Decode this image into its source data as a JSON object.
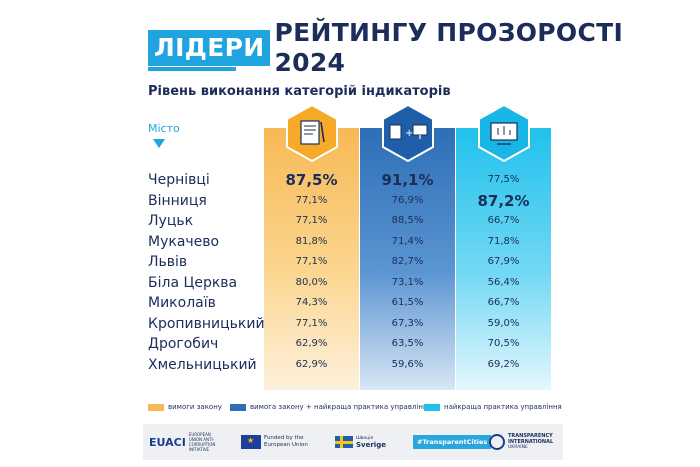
{
  "header": {
    "title_highlight": "ЛІДЕРИ",
    "title_rest": "РЕЙТИНГУ ПРОЗОРОСТІ 2024",
    "subtitle": "Рівень виконання категорій індикаторів"
  },
  "table": {
    "city_header": "Місто",
    "column_icons": [
      "law-document-icon",
      "law-plus-practice-icon",
      "management-practice-icon"
    ],
    "column_colors": [
      "#f7b955",
      "#2d6fb6",
      "#21c1ec"
    ],
    "rows": [
      {
        "city": "Чернівці",
        "law": "87,5%",
        "law_practice": "91,1%",
        "practice": "77,5%"
      },
      {
        "city": "Вінниця",
        "law": "77,1%",
        "law_practice": "76,9%",
        "practice": "87,2%"
      },
      {
        "city": "Луцьк",
        "law": "77,1%",
        "law_practice": "88,5%",
        "practice": "66,7%"
      },
      {
        "city": "Мукачево",
        "law": "81,8%",
        "law_practice": "71,4%",
        "practice": "71,8%"
      },
      {
        "city": "Львів",
        "law": "77,1%",
        "law_practice": "82,7%",
        "practice": "67,9%"
      },
      {
        "city": "Біла Церква",
        "law": "80,0%",
        "law_practice": "73,1%",
        "practice": "56,4%"
      },
      {
        "city": "Миколаїв",
        "law": "74,3%",
        "law_practice": "61,5%",
        "practice": "66,7%"
      },
      {
        "city": "Кропивницький",
        "law": "77,1%",
        "law_practice": "67,3%",
        "practice": "59,0%"
      },
      {
        "city": "Дрогобич",
        "law": "62,9%",
        "law_practice": "63,5%",
        "practice": "70,5%"
      },
      {
        "city": "Хмельницький",
        "law": "62,9%",
        "law_practice": "59,6%",
        "practice": "69,2%"
      }
    ]
  },
  "legend": {
    "law": "вимоги закону",
    "law_practice": "вимога закону + найкраща практика управління",
    "practice": "найкраща практика управління"
  },
  "footer": {
    "euaci": "EUACI",
    "euaci_sub": "EUROPEAN UNION ANTI-CORRUPTION INITIATIVE",
    "eu_funded": "Funded by the European Union",
    "sweden_top": "Sverige",
    "sweden_pre": "Швеція",
    "transparent_cities": "#TransparentCities",
    "ti": "TRANSPARENCY INTERNATIONAL",
    "ti_sub": "UKRAINE"
  }
}
